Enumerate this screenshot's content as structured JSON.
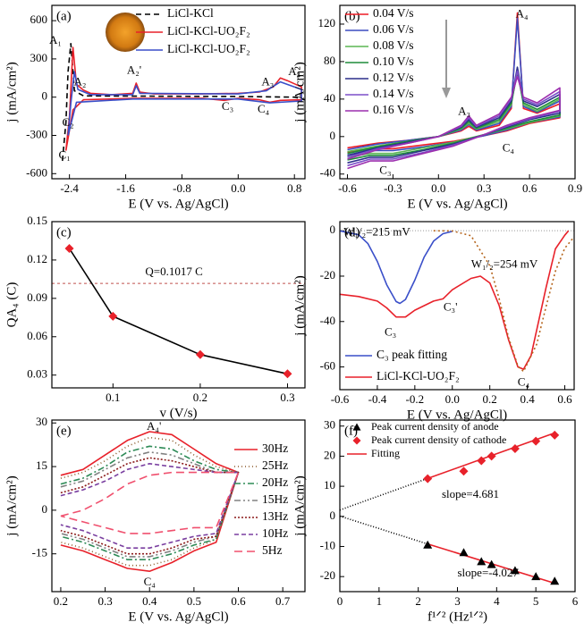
{
  "chart_data": [
    {
      "type": "line",
      "label": "(a)",
      "x_label": "E (V vs. Ag/AgCl)",
      "y_label": "j (mA/cm²)",
      "xlim": [
        -2.65,
        0.95
      ],
      "xticks": [
        -2.4,
        -1.6,
        -0.8,
        {
          "value": 0,
          "label": "0.0"
        },
        0.8
      ],
      "ylim": [
        -640,
        720
      ],
      "yticks": [
        -600,
        -300,
        0,
        300,
        600
      ],
      "series": [
        {
          "name": "LiCl-KCl",
          "color": "#000000",
          "dash": "6,4",
          "x": [
            -2.5,
            -2.45,
            -2.42,
            -2.38,
            -2.33,
            -2.2,
            0,
            0.8,
            0.95
          ],
          "values": [
            -500,
            -200,
            200,
            420,
            50,
            10,
            5,
            0,
            -20
          ]
        },
        {
          "name": "LiCl-KCl-UO₂F₂",
          "color": "#e8212a",
          "x": [
            -2.45,
            -2.4,
            -2.35,
            -2.3,
            -2.2,
            -2.1,
            -1.8,
            -1.5,
            -1.45,
            -1.4,
            -1.2,
            -0.5,
            0,
            0.3,
            0.4,
            0.5,
            0.6,
            0.7,
            0.9,
            0.9,
            0.6,
            0.45,
            0.3,
            0,
            -0.2,
            -0.5,
            -1.5,
            -2.2,
            -2.35,
            -2.45
          ],
          "values": [
            -420,
            -150,
            390,
            100,
            55,
            30,
            20,
            30,
            110,
            40,
            25,
            25,
            30,
            40,
            60,
            80,
            150,
            130,
            80,
            -20,
            -25,
            -40,
            -20,
            -10,
            -25,
            -10,
            -10,
            -20,
            -100,
            -420
          ]
        },
        {
          "name": "LiCl-KCl-UO₂F₂",
          "color": "#3a4fc9",
          "x": [
            -2.42,
            -2.38,
            -2.33,
            -2.28,
            -2.1,
            -1.5,
            -1.45,
            -1.4,
            0,
            0.4,
            0.6,
            0.9,
            0.9,
            0.45,
            0,
            -1.5,
            -2.3,
            -2.42
          ],
          "values": [
            -300,
            -50,
            200,
            60,
            20,
            20,
            90,
            30,
            25,
            50,
            120,
            60,
            -30,
            -45,
            -15,
            -15,
            -40,
            -300
          ]
        }
      ],
      "annotations": [
        "A₁",
        "A₂",
        "A₂'",
        "A₃",
        "A₄",
        "C₁",
        "C₂",
        "C₃",
        "C₄"
      ]
    },
    {
      "type": "line",
      "label": "(b)",
      "x_label": "E (V vs. Ag/AgCl)",
      "y_label": "j (mA/cm²)",
      "xlim": [
        -0.65,
        0.9
      ],
      "xticks": [
        -0.6,
        -0.3,
        {
          "value": 0,
          "label": "0.0"
        },
        0.3,
        0.6,
        0.9
      ],
      "ylim": [
        -45,
        140
      ],
      "yticks": [
        -40,
        0,
        40,
        80,
        120
      ],
      "x": [
        -0.6,
        -0.4,
        -0.2,
        0,
        0.15,
        0.2,
        0.25,
        0.4,
        0.48,
        0.52,
        0.56,
        0.65,
        0.8,
        0.8,
        0.6,
        0.45,
        0.3,
        0.1,
        -0.1,
        -0.3,
        -0.45,
        -0.6
      ],
      "series": [
        {
          "name": "0.04 V/s",
          "color": "#ee1c25",
          "values": [
            -12,
            -7,
            -4,
            0,
            6,
            11,
            6,
            12,
            30,
            132,
            30,
            25,
            35,
            20,
            14,
            6,
            1,
            -5,
            -9,
            -13,
            -13,
            -17
          ]
        },
        {
          "name": "0.06 V/s",
          "color": "#3b4cc0",
          "values": [
            -14,
            -8,
            -4,
            0,
            7,
            13,
            7,
            14,
            32,
            126,
            32,
            26,
            38,
            21,
            15,
            7,
            1,
            -6,
            -11,
            -15,
            -15,
            -20
          ]
        },
        {
          "name": "0.08 V/s",
          "color": "#5ab552",
          "values": [
            -16,
            -10,
            -5,
            0,
            8,
            14,
            8,
            16,
            34,
            72,
            34,
            27,
            40,
            22,
            15,
            8,
            2,
            -6,
            -12,
            -18,
            -18,
            -22
          ]
        },
        {
          "name": "0.10 V/s",
          "color": "#1e8c3a",
          "values": [
            -18,
            -11,
            -5,
            0,
            9,
            16,
            9,
            18,
            36,
            68,
            36,
            29,
            42,
            23,
            16,
            9,
            2,
            -7,
            -14,
            -20,
            -20,
            -25
          ]
        },
        {
          "name": "0.12 V/s",
          "color": "#2b2f8a",
          "values": [
            -20,
            -12,
            -6,
            0,
            10,
            18,
            10,
            20,
            38,
            74,
            38,
            32,
            45,
            25,
            18,
            10,
            2,
            -8,
            -15,
            -22,
            -22,
            -28
          ]
        },
        {
          "name": "0.14 V/s",
          "color": "#7b4fc9",
          "values": [
            -22,
            -13,
            -7,
            0,
            11,
            20,
            11,
            22,
            40,
            70,
            40,
            34,
            48,
            27,
            19,
            11,
            2,
            -9,
            -17,
            -24,
            -24,
            -31
          ]
        },
        {
          "name": "0.16 V/s",
          "color": "#9c2fae",
          "values": [
            -24,
            -14,
            -7,
            0,
            12,
            22,
            12,
            24,
            42,
            64,
            42,
            36,
            52,
            28,
            20,
            12,
            2,
            -10,
            -18,
            -26,
            -26,
            -34
          ]
        }
      ],
      "annotations": [
        "A₄",
        "A₃",
        "C₄",
        "C₃"
      ]
    },
    {
      "type": "line",
      "label": "(c)",
      "x_label": "v (V/s)",
      "y_label": "QA₄ (C)",
      "xlim": [
        0.03,
        0.32
      ],
      "xticks": [
        0.1,
        0.2,
        0.3
      ],
      "ylim": [
        0.02,
        0.15
      ],
      "yticks": [
        0.03,
        0.06,
        0.09,
        0.12,
        0.15
      ],
      "x": [
        0.05,
        0.1,
        0.2,
        0.3
      ],
      "series": [
        {
          "color": "#000000",
          "marker": "diamond",
          "marker_color": "#e8212a",
          "values": [
            0.129,
            0.076,
            0.046,
            0.031
          ]
        }
      ],
      "hline": 0.1017,
      "hline_color": "#c0504d",
      "hline_label": "Q=0.1017 C",
      "annotations": []
    },
    {
      "type": "line",
      "label": "(d)",
      "x_label": "E (V vs. Ag/AgCl)",
      "y_label": "j (mA/cm²)",
      "xlim": [
        -0.6,
        0.65
      ],
      "xticks": [
        -0.6,
        -0.4,
        -0.2,
        {
          "value": 0,
          "label": "0.0"
        },
        0.2,
        0.4,
        0.6
      ],
      "ylim": [
        -70,
        4
      ],
      "yticks": [
        -60,
        -40,
        -20,
        0
      ],
      "zero_line": true,
      "series": [
        {
          "name": "C₃ peak fitting",
          "color": "#3a4fc9",
          "x": [
            -0.6,
            -0.5,
            -0.45,
            -0.4,
            -0.35,
            -0.3,
            -0.28,
            -0.25,
            -0.2,
            -0.15,
            -0.1,
            -0.05,
            0
          ],
          "values": [
            -0.1,
            -1.8,
            -5.7,
            -13.5,
            -23.8,
            -31.2,
            -32,
            -30.3,
            -21.8,
            -11.6,
            -4.6,
            -1.3,
            -0.3
          ]
        },
        {
          "name": "LiCl-KCl-UO₂F₂",
          "color": "#e8212a",
          "x": [
            -0.6,
            -0.5,
            -0.4,
            -0.35,
            -0.3,
            -0.25,
            -0.2,
            -0.1,
            -0.05,
            0,
            0.1,
            0.15,
            0.2,
            0.25,
            0.3,
            0.35,
            0.38,
            0.42,
            0.5,
            0.55,
            0.6,
            0.62
          ],
          "values": [
            -28,
            -29,
            -31,
            -34,
            -38,
            -38,
            -35,
            -31,
            -30,
            -26,
            -21,
            -20,
            -23,
            -33,
            -48,
            -60,
            -61,
            -55,
            -25,
            -8,
            -2,
            0
          ]
        },
        {
          "color": "#b5651d",
          "dash": "2,3",
          "x": [
            -0.1,
            0,
            0.1,
            0.2,
            0.25,
            0.3,
            0.35,
            0.38,
            0.45,
            0.5,
            0.55,
            0.6,
            0.65
          ],
          "values": [
            0,
            -0.1,
            -2.2,
            -15.4,
            -30,
            -47,
            -59.6,
            -62,
            -50,
            -33.4,
            -17.9,
            -7.7,
            -2.7
          ]
        }
      ],
      "annotations": [
        "W₁/₂=215 mV",
        "W₁/₂=254 mV",
        "C₃",
        "C₃'",
        "C₄"
      ]
    },
    {
      "type": "line",
      "label": "(e)",
      "x_label": "E (V vs. Ag/AgCl)",
      "y_label": "j (mA/cm²)",
      "xlim": [
        0.18,
        0.75
      ],
      "xticks": [
        0.2,
        0.3,
        0.4,
        0.5,
        0.6,
        0.7
      ],
      "ylim": [
        -28,
        31
      ],
      "yticks": [
        -15,
        0,
        15,
        30
      ],
      "x": [
        0.2,
        0.25,
        0.3,
        0.35,
        0.4,
        0.45,
        0.5,
        0.55,
        0.6,
        0.55,
        0.5,
        0.45,
        0.4,
        0.35,
        0.3,
        0.25,
        0.2
      ],
      "series": [
        {
          "name": "30Hz",
          "color": "#e8212a",
          "values": [
            12,
            14,
            19,
            24,
            27,
            26,
            21,
            16,
            13,
            -11,
            -14,
            -18,
            -21,
            -20,
            -17,
            -14,
            -12
          ]
        },
        {
          "name": "25Hz",
          "color": "#8b5a2b",
          "dash": "1,3",
          "values": [
            11,
            13,
            17,
            22,
            25,
            24,
            19,
            15,
            13,
            -10,
            -13,
            -17,
            -19,
            -19,
            -16,
            -13,
            -11
          ]
        },
        {
          "name": "20Hz",
          "color": "#2e8b57",
          "dash": "7,3,2,3",
          "values": [
            9,
            11,
            15,
            20,
            22,
            21,
            17,
            14,
            13,
            -10,
            -12,
            -15,
            -17,
            -17,
            -14,
            -11,
            -9
          ]
        },
        {
          "name": "15Hz",
          "color": "#808080",
          "dash": "7,3,2,3,2,3",
          "values": [
            8,
            10,
            14,
            18,
            20,
            19,
            16,
            13,
            13,
            -9,
            -11,
            -14,
            -16,
            -16,
            -13,
            -10,
            -8
          ]
        },
        {
          "name": "13Hz",
          "color": "#8b1a1a",
          "dash": "2,2",
          "values": [
            6,
            8,
            12,
            16,
            18,
            17,
            15,
            13,
            13,
            -9,
            -10,
            -13,
            -15,
            -15,
            -12,
            -9,
            -7
          ]
        },
        {
          "name": "10Hz",
          "color": "#7a3fa0",
          "dash": "5,3",
          "values": [
            5,
            7,
            10,
            14,
            16,
            15,
            14,
            13,
            13,
            -8,
            -9,
            -11,
            -13,
            -13,
            -10,
            -7,
            -5
          ]
        },
        {
          "name": "5Hz",
          "color": "#f0506e",
          "dash": "9,5",
          "values": [
            -2,
            0,
            4,
            9,
            12,
            13,
            13,
            13,
            13,
            -6,
            -6,
            -7,
            -8,
            -8,
            -6,
            -4,
            -2
          ]
        }
      ],
      "annotations": [
        "A₄'",
        "C₄"
      ]
    },
    {
      "type": "scatter",
      "label": "(f)",
      "x_label": "f¹ᐟ² (Hz¹ᐟ²)",
      "y_label": "j (mA/cm²)",
      "xlim": [
        0,
        6
      ],
      "xticks": [
        0,
        1,
        2,
        3,
        4,
        5,
        6
      ],
      "ylim": [
        -25,
        32
      ],
      "yticks": [
        -20,
        -10,
        0,
        10,
        20,
        30
      ],
      "series": [
        {
          "name": "Peak current density of anode",
          "color": "#000000",
          "marker": "triangle",
          "line": false,
          "x": [
            2.24,
            3.16,
            3.61,
            3.87,
            4.47,
            5.0,
            5.48
          ],
          "values": [
            -9.5,
            -12,
            -15,
            -16,
            -18,
            -20,
            -21.5
          ]
        },
        {
          "name": "Peak current density of cathode",
          "color": "#e8212a",
          "marker": "diamond",
          "line": false,
          "x": [
            2.24,
            3.16,
            3.61,
            3.87,
            4.47,
            5.0,
            5.48
          ],
          "values": [
            12.5,
            15,
            18.5,
            20,
            22.5,
            25,
            27
          ]
        },
        {
          "name": "Fitting",
          "color": "#e8212a",
          "x": [
            2.2,
            5.5
          ],
          "values": [
            12.4,
            27.8
          ]
        },
        {
          "color": "#e8212a",
          "x": [
            2.2,
            5.5
          ],
          "values": [
            -9.0,
            -22.3
          ]
        },
        {
          "color": "#000000",
          "dash": "1,2",
          "x": [
            0,
            2.2
          ],
          "values": [
            2.1,
            12.4
          ]
        },
        {
          "color": "#000000",
          "dash": "1,2",
          "x": [
            0,
            2.2
          ],
          "values": [
            0.1,
            -9.0
          ]
        }
      ],
      "annotations": [
        "slope=4.681",
        "slope=-4.027"
      ]
    }
  ]
}
